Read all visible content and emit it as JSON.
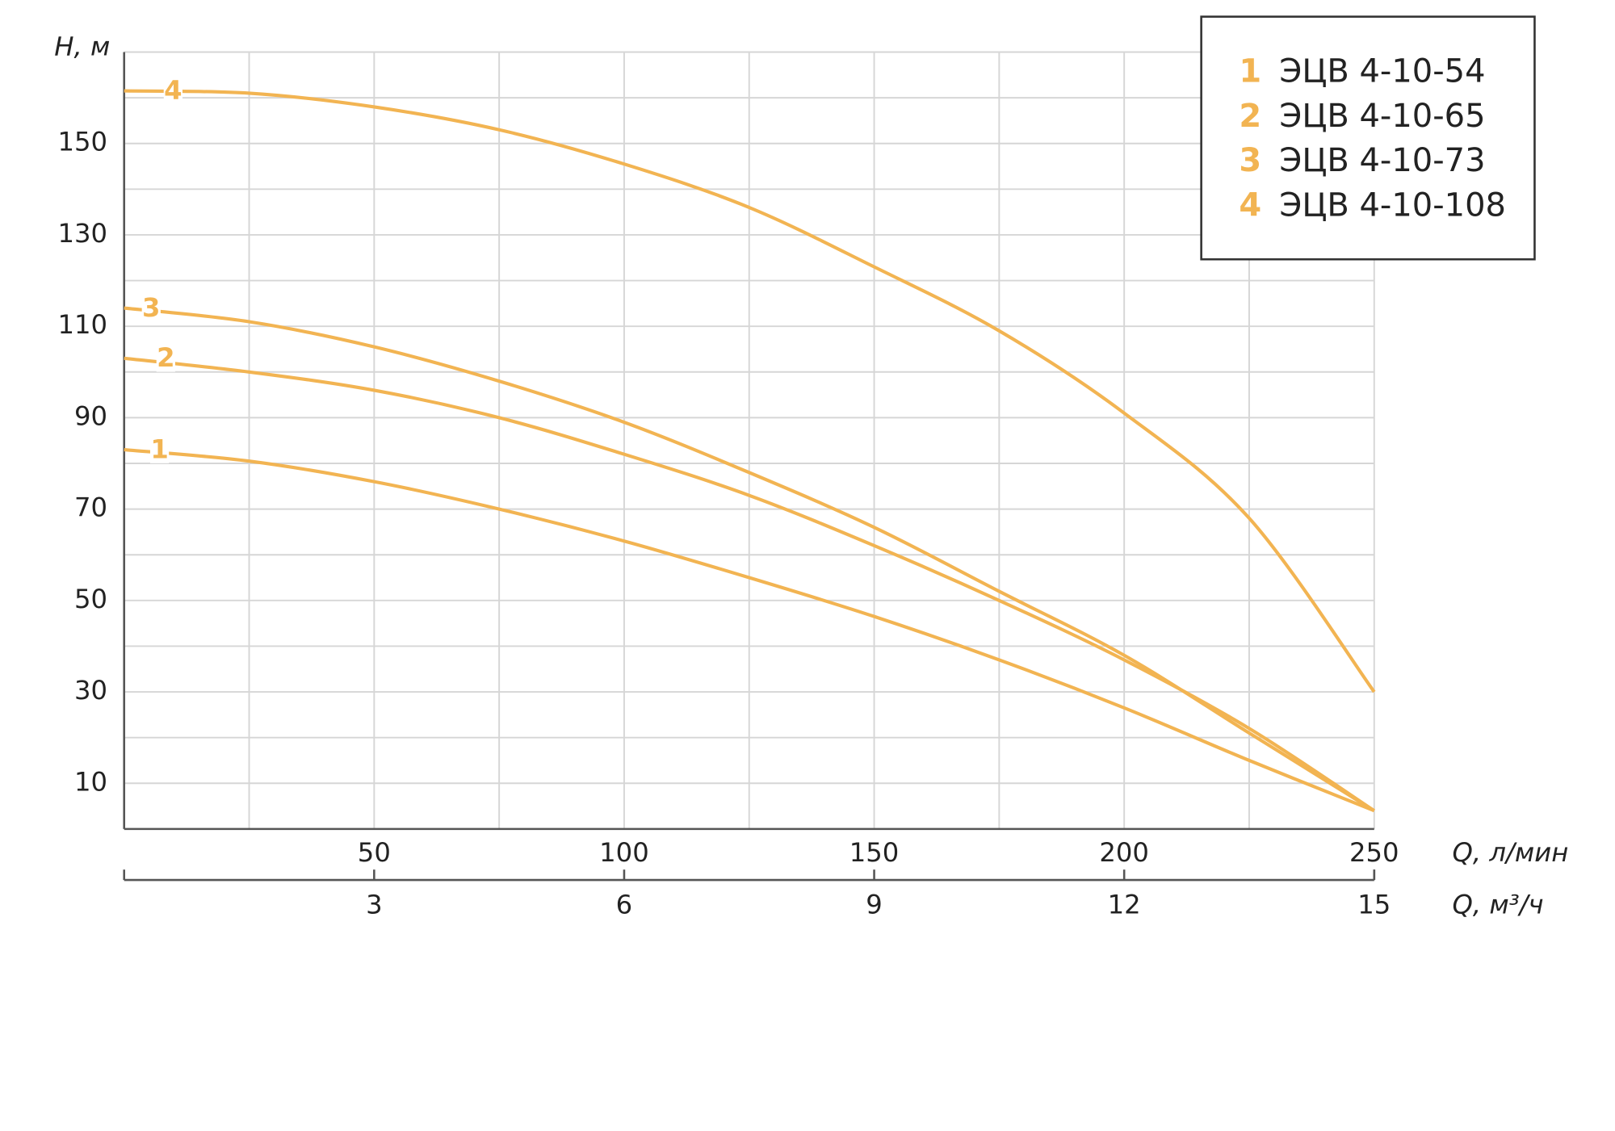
{
  "chart_data": {
    "type": "line",
    "y_label": "H, м",
    "x_label": "Q, л/мин",
    "x2_label": "Q, м³/ч",
    "x": [
      0,
      25,
      50,
      75,
      100,
      125,
      150,
      175,
      200,
      225,
      250
    ],
    "series": [
      {
        "name": "ЭЦВ 4-10-54",
        "label": "1",
        "color": "#f2b452",
        "values": [
          83,
          80.5,
          76,
          70,
          63,
          55,
          46.5,
          37,
          26.5,
          15,
          4
        ]
      },
      {
        "name": "ЭЦВ 4-10-65",
        "label": "2",
        "color": "#f2b452",
        "values": [
          103,
          100,
          96,
          90,
          82,
          73,
          62,
          50,
          37,
          22,
          4
        ]
      },
      {
        "name": "ЭЦВ 4-10-73",
        "label": "3",
        "color": "#f2b452",
        "values": [
          114,
          111,
          105.5,
          98,
          89,
          78,
          66,
          52,
          38,
          21,
          4
        ]
      },
      {
        "name": "ЭЦВ 4-10-108",
        "label": "4",
        "color": "#f2b452",
        "values": [
          161.5,
          161,
          158,
          153,
          145.5,
          136,
          123,
          109,
          91,
          68,
          30
        ]
      }
    ],
    "xlim": [
      0,
      250
    ],
    "xticks": [
      50,
      100,
      150,
      200,
      250
    ],
    "x_grid": [
      25,
      50,
      75,
      100,
      125,
      150,
      175,
      200,
      225,
      250
    ],
    "x2lim": [
      0,
      15
    ],
    "x2ticks": [
      3,
      6,
      9,
      12,
      15
    ],
    "ylim": [
      0,
      170
    ],
    "yticks": [
      10,
      30,
      50,
      70,
      90,
      110,
      130,
      150
    ],
    "y_grid": [
      10,
      20,
      30,
      40,
      50,
      60,
      70,
      80,
      90,
      100,
      110,
      120,
      130,
      140,
      150,
      160,
      170
    ],
    "grid": true,
    "legend": "top-right"
  }
}
